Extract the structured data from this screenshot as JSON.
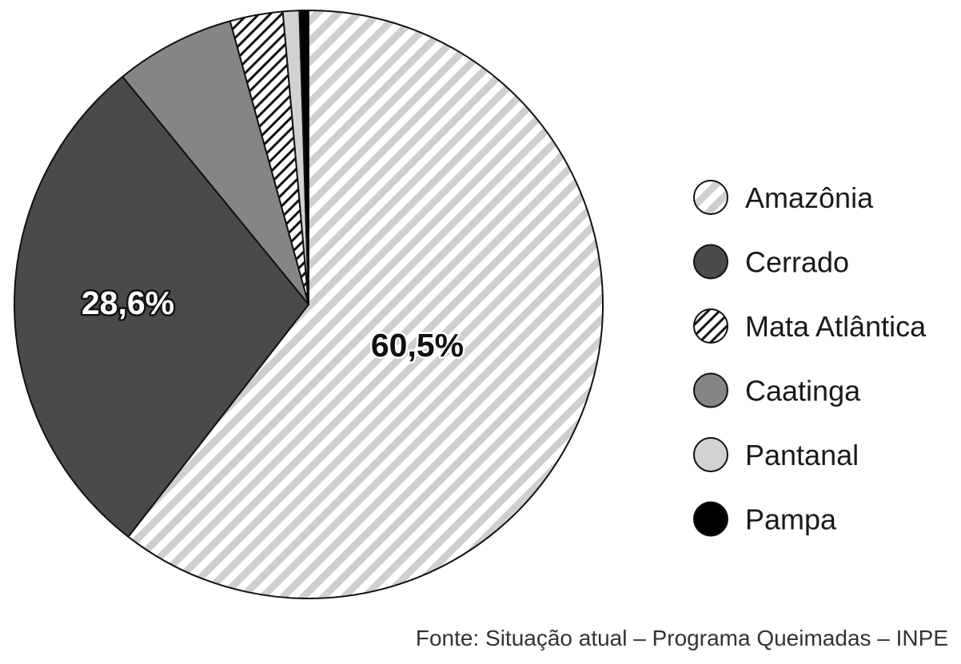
{
  "chart_data": {
    "type": "pie",
    "slices": [
      {
        "name": "Amazônia",
        "value": 60.5,
        "fill": "stripe-gray",
        "label": "60,5%"
      },
      {
        "name": "Cerrado",
        "value": 28.6,
        "fill": "#4a4a4a",
        "label": "28,6%"
      },
      {
        "name": "Caatinga",
        "value": 6.6,
        "fill": "#858585",
        "label": ""
      },
      {
        "name": "Mata Atlântica",
        "value": 2.9,
        "fill": "hatch-black",
        "label": ""
      },
      {
        "name": "Pantanal",
        "value": 0.9,
        "fill": "#d2d2d2",
        "label": ""
      },
      {
        "name": "Pampa",
        "value": 0.5,
        "fill": "#000000",
        "label": ""
      }
    ],
    "legend": {
      "placement": "right",
      "items": [
        {
          "name": "Amazônia",
          "fill": "stripe-gray"
        },
        {
          "name": "Cerrado",
          "fill": "#4a4a4a"
        },
        {
          "name": "Mata Atlântica",
          "fill": "hatch-black"
        },
        {
          "name": "Caatinga",
          "fill": "#858585"
        },
        {
          "name": "Pantanal",
          "fill": "#d2d2d2"
        },
        {
          "name": "Pampa",
          "fill": "#000000"
        }
      ]
    },
    "source": "Fonte: Situação atual – Programa Queimadas – INPE"
  }
}
